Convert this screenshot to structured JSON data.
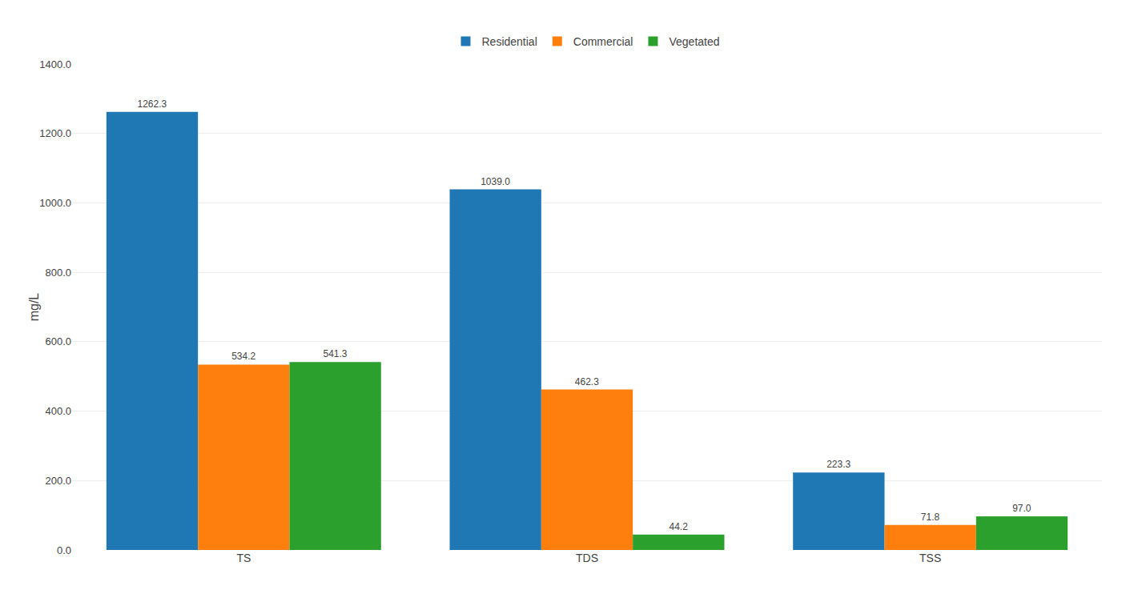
{
  "chart_data": {
    "type": "bar",
    "categories": [
      "TS",
      "TDS",
      "TSS"
    ],
    "series": [
      {
        "name": "Residential",
        "values": [
          1262.3,
          1039.0,
          223.3
        ],
        "value_labels": [
          "1262.3",
          "1039.0",
          "223.3"
        ]
      },
      {
        "name": "Commercial",
        "values": [
          534.2,
          462.3,
          71.8
        ],
        "value_labels": [
          "534.2",
          "462.3",
          "71.8"
        ]
      },
      {
        "name": "Vegetated",
        "values": [
          541.3,
          44.2,
          97.0
        ],
        "value_labels": [
          "541.3",
          "44.2",
          "97.0"
        ]
      }
    ],
    "ylabel": "mg/L",
    "ylim": [
      0,
      1400.0
    ],
    "yticks": [
      {
        "value": 0.0,
        "label": "0.0"
      },
      {
        "value": 200.0,
        "label": "200.0"
      },
      {
        "value": 400.0,
        "label": "400.0"
      },
      {
        "value": 600.0,
        "label": "600.0"
      },
      {
        "value": 800.0,
        "label": "800.0"
      },
      {
        "value": 1000.0,
        "label": "1000.0"
      },
      {
        "value": 1200.0,
        "label": "1200.0"
      },
      {
        "value": 1400.0,
        "label": "1400.0"
      }
    ],
    "grid": true,
    "legend": "top",
    "data_labels": true
  }
}
